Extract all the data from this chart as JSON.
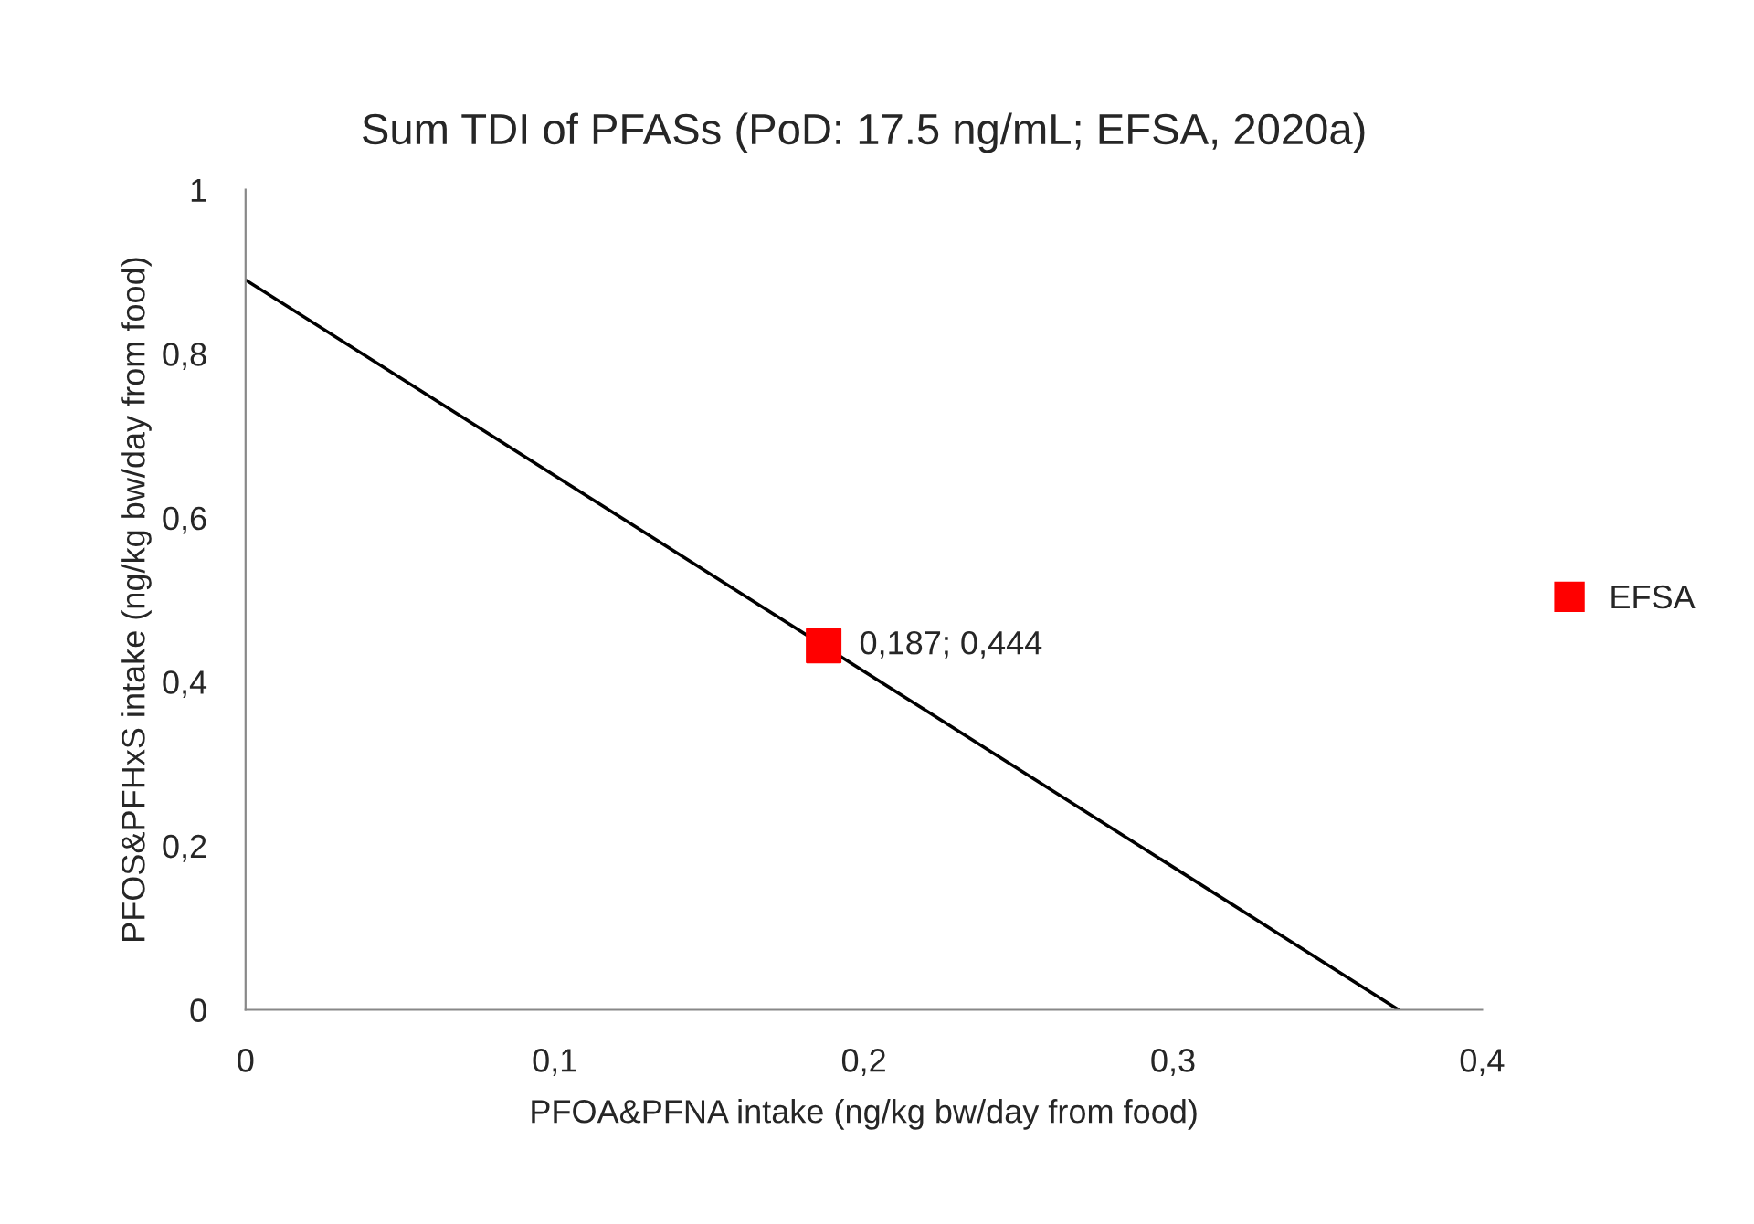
{
  "chart_data": {
    "type": "scatter",
    "title": "Sum TDI of PFASs (PoD: 17.5 ng/mL; EFSA, 2020a)",
    "xlabel": "PFOA&PFNA intake (ng/kg bw/day from food)",
    "ylabel": "PFOS&PFHxS intake (ng/kg bw/day from food)",
    "series": [
      {
        "type": "line",
        "color": "#000000",
        "x": [
          0,
          0.373
        ],
        "values": [
          0.89,
          0
        ],
        "marker": "none",
        "line_style": "solid"
      },
      {
        "name": "EFSA",
        "color": "#ff0000",
        "x": [
          0.187
        ],
        "values": [
          0.444
        ],
        "marker": "square",
        "value_labels": [
          "0,187; 0,444"
        ]
      }
    ],
    "xlim": [
      0,
      0.4
    ],
    "ylim": [
      0,
      1
    ],
    "xticks": [
      0,
      {
        "value": 0.1,
        "label": "0,1"
      },
      {
        "value": 0.2,
        "label": "0,2"
      },
      {
        "value": 0.3,
        "label": "0,3"
      },
      {
        "value": 0.4,
        "label": "0,4"
      }
    ],
    "yticks": [
      0,
      {
        "value": 0.2,
        "label": "0,2"
      },
      {
        "value": 0.4,
        "label": "0,4"
      },
      {
        "value": 0.6,
        "label": "0,6"
      },
      {
        "value": 0.8,
        "label": "0,8"
      },
      1
    ],
    "grid": false,
    "legend": "right"
  }
}
